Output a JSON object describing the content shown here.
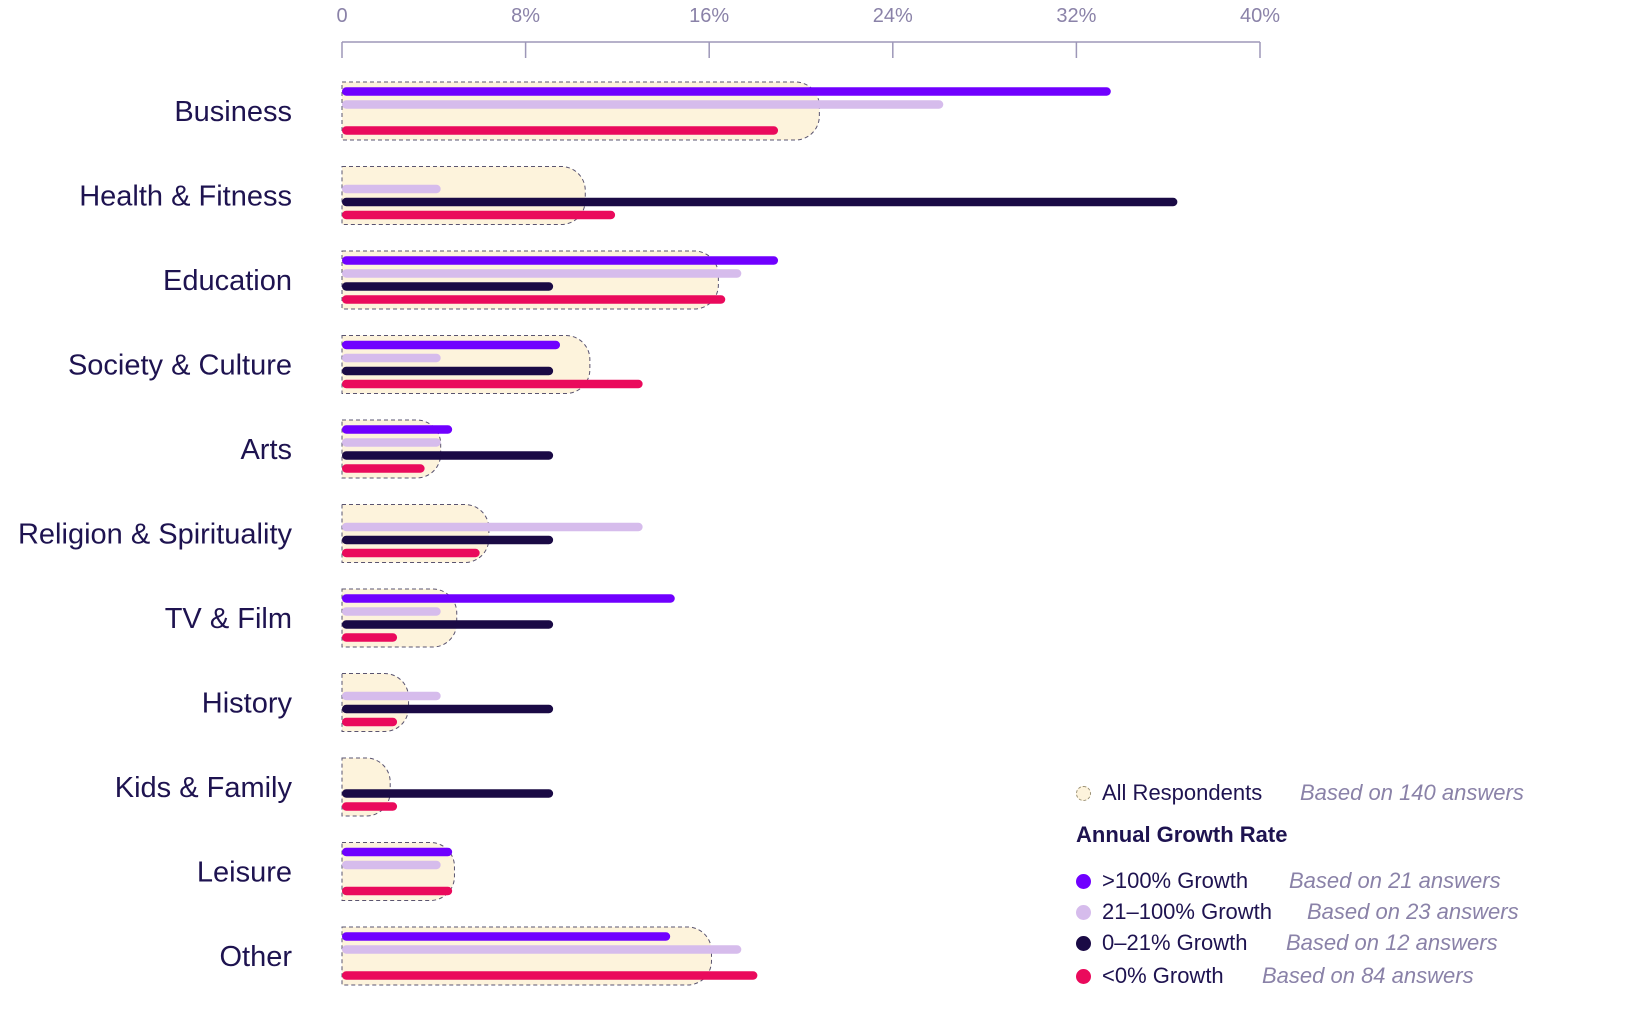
{
  "chart_data": {
    "type": "bar",
    "orientation": "horizontal",
    "title": "",
    "xlabel": "",
    "ylabel": "",
    "xlim": [
      0,
      40
    ],
    "x_ticks": [
      {
        "value": 0,
        "label": "0"
      },
      {
        "value": 8,
        "label": "8%"
      },
      {
        "value": 16,
        "label": "16%"
      },
      {
        "value": 24,
        "label": "24%"
      },
      {
        "value": 32,
        "label": "32%"
      },
      {
        "value": 40,
        "label": "40%"
      }
    ],
    "categories": [
      "Business",
      "Health & Fitness",
      "Education",
      "Society & Culture",
      "Arts",
      "Religion & Spirituality",
      "TV & Film",
      "History",
      "Kids & Family",
      "Leisure",
      "Other"
    ],
    "all_respondents": {
      "name": "All Respondents",
      "note": "Based on 140 answers",
      "values": [
        20.8,
        10.6,
        16.4,
        10.8,
        4.3,
        6.4,
        5.0,
        2.9,
        2.1,
        4.9,
        16.1
      ],
      "fill": "#fdf3dc",
      "stroke": "#5a5470"
    },
    "series_group_title": "Annual Growth Rate",
    "series": [
      {
        "name": ">100% Growth",
        "note": "Based on 21 answers",
        "color": "#7000ff",
        "values": [
          33.5,
          0,
          19.0,
          9.5,
          4.8,
          0,
          14.5,
          0,
          0,
          4.8,
          14.3
        ]
      },
      {
        "name": "21–100% Growth",
        "note": "Based on 23 answers",
        "color": "#d6bcec",
        "values": [
          26.2,
          4.3,
          17.4,
          4.3,
          4.3,
          13.1,
          4.3,
          4.3,
          0,
          4.3,
          17.4
        ]
      },
      {
        "name": "0–21% Growth",
        "note": "Based on 12 answers",
        "color": "#1a0a45",
        "values": [
          0,
          36.4,
          9.2,
          9.2,
          9.2,
          9.2,
          9.2,
          9.2,
          9.2,
          0,
          0
        ]
      },
      {
        "name": "<0% Growth",
        "note": "Based on 84 answers",
        "color": "#ea0a5c",
        "values": [
          19.0,
          11.9,
          16.7,
          13.1,
          3.6,
          6.0,
          2.4,
          2.4,
          2.4,
          4.8,
          18.1
        ]
      }
    ]
  }
}
